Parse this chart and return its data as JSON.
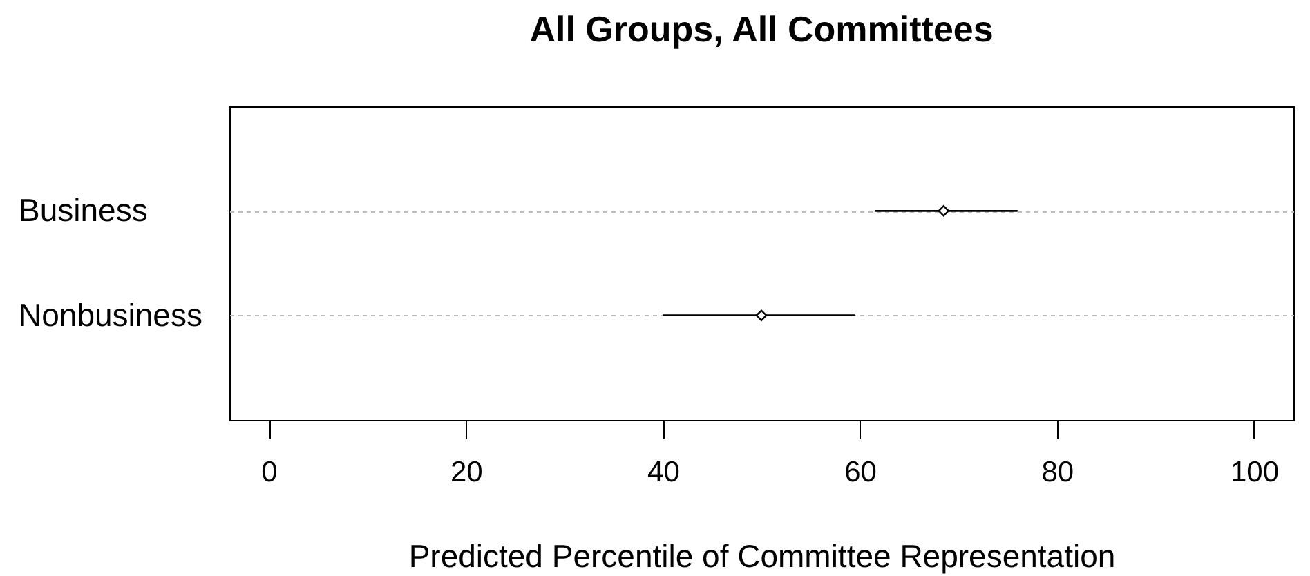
{
  "chart_data": {
    "type": "scatter",
    "title": "All Groups, All Committees",
    "xlabel": "Predicted Percentile of Committee Representation",
    "orientation": "horizontal",
    "categories": [
      "Business",
      "Nonbusiness"
    ],
    "values": [
      68.5,
      50
    ],
    "errors": [
      [
        61.5,
        76
      ],
      [
        40,
        59.5
      ]
    ],
    "color": "#000000",
    "marker": "diamond",
    "xlim": [
      -4,
      104
    ],
    "xticks": [
      0,
      20,
      40,
      60,
      80,
      100
    ],
    "grid": "y"
  }
}
